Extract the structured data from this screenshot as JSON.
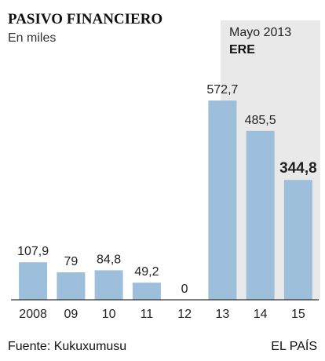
{
  "chart_data": {
    "type": "bar",
    "title": "PASIVO FINANCIERO",
    "subtitle": "En miles",
    "categories": [
      "2008",
      "09",
      "10",
      "11",
      "12",
      "13",
      "14",
      "15"
    ],
    "values": [
      107.9,
      79,
      84.8,
      49.2,
      0,
      572.7,
      485.5,
      344.8
    ],
    "value_labels": [
      "107,9",
      "79",
      "84,8",
      "49,2",
      "0",
      "572,7",
      "485,5",
      "344,8"
    ],
    "highlight_index": 7,
    "ylim": [
      0,
      600
    ],
    "annotation": {
      "line1": "Mayo 2013",
      "line2": "ERE",
      "shaded_categories": [
        "14",
        "15"
      ]
    },
    "grid": false,
    "colors": {
      "bar": "#9dbfdc",
      "shade": "#e9e9e9",
      "baseline": "#333333"
    }
  },
  "footer": {
    "source": "Fuente: Kukuxumusu",
    "credit": "EL PAÍS"
  }
}
